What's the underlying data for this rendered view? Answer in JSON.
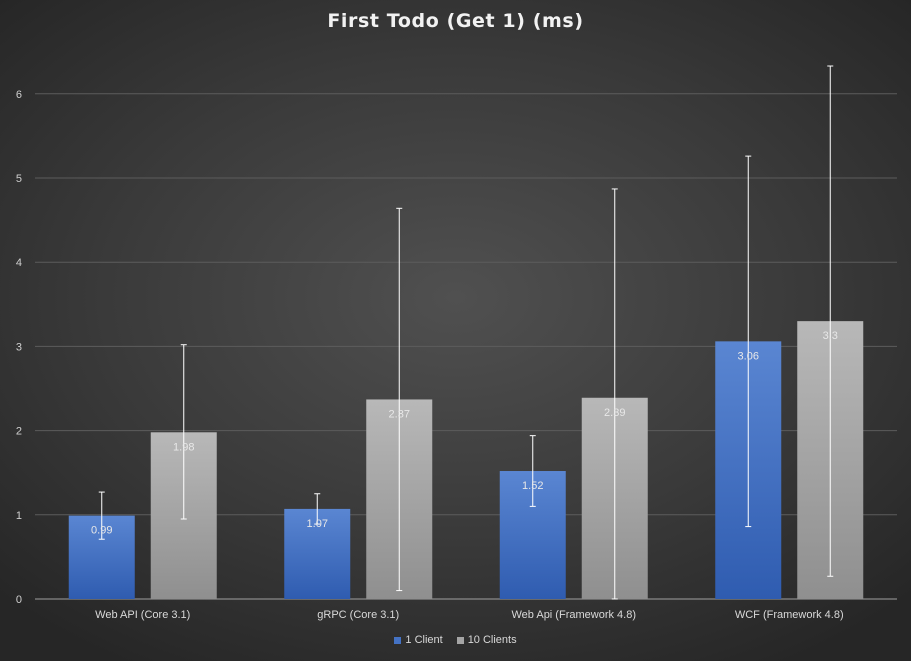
{
  "chart_data": {
    "type": "bar",
    "title": "First Todo (Get 1) (ms)",
    "categories": [
      "Web API (Core 3.1)",
      "gRPC (Core 3.1)",
      "Web Api (Framework 4.8)",
      "WCF (Framework 4.8)"
    ],
    "series": [
      {
        "name": "1 Client",
        "values": [
          0.99,
          1.07,
          1.52,
          3.06
        ],
        "error_low": [
          0.71,
          0.89,
          1.1,
          0.86
        ],
        "error_high": [
          1.27,
          1.25,
          1.94,
          5.26
        ],
        "color": "#4472c4"
      },
      {
        "name": "10 Clients",
        "values": [
          1.98,
          2.37,
          2.39,
          3.3
        ],
        "error_low": [
          0.95,
          0.1,
          0.0,
          0.27
        ],
        "error_high": [
          3.02,
          4.64,
          4.87,
          6.33
        ],
        "color": "#a5a5a5"
      }
    ],
    "ylim": [
      0,
      6.5
    ],
    "yticks": [
      "0",
      "1",
      "2",
      "3",
      "4",
      "5",
      "6"
    ],
    "grid": true,
    "legend_position": "bottom",
    "data_labels": true
  }
}
